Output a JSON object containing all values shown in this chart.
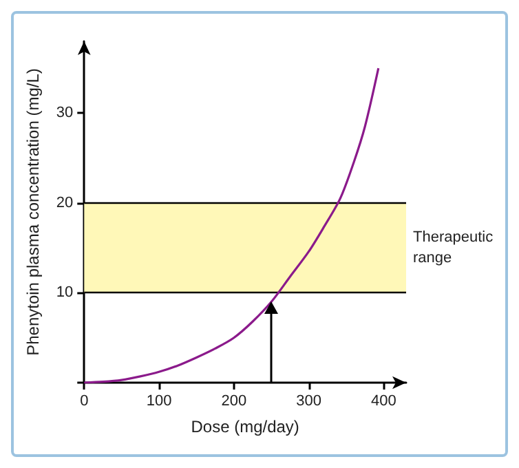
{
  "chart_data": {
    "type": "line",
    "xlabel": "Dose (mg/day)",
    "ylabel": "Phenytoin plasma concentration (mg/L)",
    "x": [
      0,
      25,
      50,
      75,
      100,
      125,
      150,
      175,
      200,
      225,
      250,
      275,
      300,
      320,
      342,
      360,
      375,
      393
    ],
    "series": [
      {
        "color": "#8b1a8b",
        "values": [
          0,
          0.1,
          0.3,
          0.7,
          1.2,
          1.9,
          2.8,
          3.8,
          5,
          6.8,
          9,
          11.8,
          14.6,
          17.3,
          20.5,
          24.5,
          28.5,
          35
        ]
      }
    ],
    "xlim": [
      0,
      430
    ],
    "ylim": [
      0,
      38
    ],
    "xticks": [
      0,
      100,
      200,
      300,
      400
    ],
    "yticks": [
      {
        "value": 0,
        "label": null
      },
      10,
      20,
      30
    ],
    "bands": [
      {
        "axis": "y",
        "from": 10,
        "to": 20,
        "label": "Therapeutic range",
        "color": "#fff8b8"
      }
    ],
    "ref_lines": [
      {
        "axis": "y",
        "value": 10,
        "color": "#000000"
      },
      {
        "axis": "y",
        "value": 20,
        "color": "#000000"
      }
    ],
    "marker": "none",
    "line_style": "solid"
  }
}
